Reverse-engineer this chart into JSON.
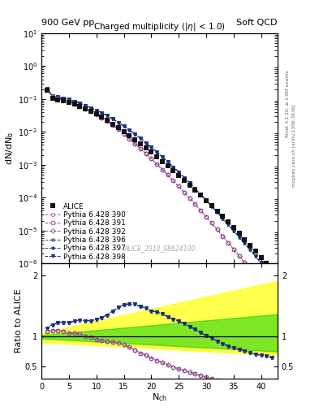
{
  "title_left": "900 GeV pp",
  "title_right": "Soft QCD",
  "right_label_top": "Rivet 3.1.10; ≥ 2.8M events",
  "right_label_bot": "mcplots.cern.ch [arXiv:1306.3436]",
  "main_title": "Charged multiplicity (|η| < 1.0)",
  "watermark": "ALICE_2010_S8624100",
  "xlim": [
    0,
    43
  ],
  "ylim_main": [
    1e-06,
    10
  ],
  "ylim_ratio": [
    0.3,
    2.2
  ],
  "alice_x": [
    1,
    2,
    3,
    4,
    5,
    6,
    7,
    8,
    9,
    10,
    11,
    12,
    13,
    14,
    15,
    16,
    17,
    18,
    19,
    20,
    21,
    22,
    23,
    24,
    25,
    26,
    27,
    28,
    29,
    30,
    31,
    32,
    33,
    34,
    35,
    36,
    37,
    38,
    39,
    40,
    41,
    42
  ],
  "alice_y": [
    0.185,
    0.105,
    0.095,
    0.087,
    0.079,
    0.069,
    0.059,
    0.051,
    0.043,
    0.036,
    0.029,
    0.023,
    0.0175,
    0.0133,
    0.01,
    0.0076,
    0.0057,
    0.0043,
    0.0032,
    0.0024,
    0.00175,
    0.00128,
    0.00093,
    0.00067,
    0.00048,
    0.00034,
    0.00024,
    0.000168,
    0.000118,
    8.25e-05,
    5.7e-05,
    3.92e-05,
    2.68e-05,
    1.83e-05,
    1.23e-05,
    8.2e-06,
    5.4e-06,
    3.6e-06,
    2.35e-06,
    1.54e-06,
    1e-06,
    6.5e-07
  ],
  "p390_x": [
    1,
    2,
    3,
    4,
    5,
    6,
    7,
    8,
    9,
    10,
    11,
    12,
    13,
    14,
    15,
    16,
    17,
    18,
    19,
    20,
    21,
    22,
    23,
    24,
    25,
    26,
    27,
    28,
    29,
    30,
    31,
    32,
    33,
    34,
    35,
    36,
    37,
    38,
    39,
    40,
    41,
    42
  ],
  "p390_y": [
    0.2,
    0.115,
    0.104,
    0.094,
    0.083,
    0.072,
    0.061,
    0.051,
    0.042,
    0.034,
    0.027,
    0.021,
    0.0158,
    0.0118,
    0.0086,
    0.0062,
    0.0044,
    0.0031,
    0.0022,
    0.00153,
    0.00105,
    0.00072,
    0.00049,
    0.00033,
    0.00022,
    0.000147,
    9.7e-05,
    6.3e-05,
    4.1e-05,
    2.65e-05,
    1.7e-05,
    1.08e-05,
    6.8e-06,
    4.3e-06,
    2.7e-06,
    1.7e-06,
    1.05e-06,
    6.5e-07,
    4e-07,
    2.5e-07,
    1.5e-07,
    9.2e-08
  ],
  "p391_x": [
    1,
    2,
    3,
    4,
    5,
    6,
    7,
    8,
    9,
    10,
    11,
    12,
    13,
    14,
    15,
    16,
    17,
    18,
    19,
    20,
    21,
    22,
    23,
    24,
    25,
    26,
    27,
    28,
    29,
    30,
    31,
    32,
    33,
    34,
    35,
    36,
    37,
    38,
    39,
    40,
    41,
    42
  ],
  "p391_y": [
    0.2,
    0.115,
    0.104,
    0.094,
    0.083,
    0.072,
    0.061,
    0.051,
    0.042,
    0.034,
    0.027,
    0.021,
    0.0158,
    0.0118,
    0.0086,
    0.0062,
    0.0044,
    0.0031,
    0.0022,
    0.00153,
    0.00105,
    0.00072,
    0.00049,
    0.00033,
    0.00022,
    0.000147,
    9.7e-05,
    6.3e-05,
    4.1e-05,
    2.65e-05,
    1.7e-05,
    1.08e-05,
    6.8e-06,
    4.3e-06,
    2.7e-06,
    1.7e-06,
    1.05e-06,
    6.5e-07,
    4e-07,
    2.5e-07,
    1.5e-07,
    9.2e-08
  ],
  "p392_x": [
    1,
    2,
    3,
    4,
    5,
    6,
    7,
    8,
    9,
    10,
    11,
    12,
    13,
    14,
    15,
    16,
    17,
    18,
    19,
    20,
    21,
    22,
    23,
    24,
    25,
    26,
    27,
    28,
    29,
    30,
    31,
    32,
    33,
    34,
    35,
    36,
    37,
    38,
    39,
    40,
    41,
    42
  ],
  "p392_y": [
    0.2,
    0.115,
    0.104,
    0.094,
    0.083,
    0.072,
    0.061,
    0.051,
    0.042,
    0.034,
    0.027,
    0.021,
    0.0158,
    0.0118,
    0.0086,
    0.0062,
    0.0044,
    0.0031,
    0.0022,
    0.00153,
    0.00105,
    0.00072,
    0.00049,
    0.00033,
    0.00022,
    0.000147,
    9.7e-05,
    6.3e-05,
    4.1e-05,
    2.65e-05,
    1.7e-05,
    1.08e-05,
    6.8e-06,
    4.3e-06,
    2.7e-06,
    1.7e-06,
    1.05e-06,
    6.5e-07,
    4e-07,
    2.5e-07,
    1.5e-07,
    9.2e-08
  ],
  "p396_x": [
    1,
    2,
    3,
    4,
    5,
    6,
    7,
    8,
    9,
    10,
    11,
    12,
    13,
    14,
    15,
    16,
    17,
    18,
    19,
    20,
    21,
    22,
    23,
    24,
    25,
    26,
    27,
    28,
    29,
    30,
    31,
    32,
    33,
    34,
    35,
    36,
    37,
    38,
    39,
    40,
    41,
    42
  ],
  "p396_y": [
    0.21,
    0.125,
    0.116,
    0.107,
    0.097,
    0.086,
    0.075,
    0.064,
    0.054,
    0.046,
    0.038,
    0.031,
    0.0248,
    0.0196,
    0.0152,
    0.0116,
    0.0087,
    0.0064,
    0.0047,
    0.0034,
    0.00245,
    0.00175,
    0.00123,
    0.00086,
    0.0006,
    0.00041,
    0.000278,
    0.000187,
    0.000125,
    8.32e-05,
    5.5e-05,
    3.61e-05,
    2.35e-05,
    1.53e-05,
    9.9e-06,
    6.4e-06,
    4.1e-06,
    2.6e-06,
    1.65e-06,
    1.05e-06,
    6.7e-07,
    4.2e-07
  ],
  "p397_x": [
    1,
    2,
    3,
    4,
    5,
    6,
    7,
    8,
    9,
    10,
    11,
    12,
    13,
    14,
    15,
    16,
    17,
    18,
    19,
    20,
    21,
    22,
    23,
    24,
    25,
    26,
    27,
    28,
    29,
    30,
    31,
    32,
    33,
    34,
    35,
    36,
    37,
    38,
    39,
    40,
    41,
    42
  ],
  "p397_y": [
    0.21,
    0.125,
    0.116,
    0.107,
    0.097,
    0.086,
    0.075,
    0.064,
    0.054,
    0.046,
    0.038,
    0.031,
    0.0248,
    0.0196,
    0.0152,
    0.0116,
    0.0087,
    0.0064,
    0.0047,
    0.0034,
    0.00245,
    0.00175,
    0.00123,
    0.00086,
    0.0006,
    0.00041,
    0.000278,
    0.000187,
    0.000125,
    8.32e-05,
    5.5e-05,
    3.61e-05,
    2.35e-05,
    1.53e-05,
    9.9e-06,
    6.4e-06,
    4.1e-06,
    2.6e-06,
    1.65e-06,
    1.05e-06,
    6.7e-07,
    4.2e-07
  ],
  "p398_x": [
    1,
    2,
    3,
    4,
    5,
    6,
    7,
    8,
    9,
    10,
    11,
    12,
    13,
    14,
    15,
    16,
    17,
    18,
    19,
    20,
    21,
    22,
    23,
    24,
    25,
    26,
    27,
    28,
    29,
    30,
    31,
    32,
    33,
    34,
    35,
    36,
    37,
    38,
    39,
    40,
    41,
    42
  ],
  "p398_y": [
    0.21,
    0.125,
    0.116,
    0.107,
    0.097,
    0.086,
    0.075,
    0.064,
    0.054,
    0.046,
    0.038,
    0.031,
    0.0248,
    0.0196,
    0.0152,
    0.0116,
    0.0087,
    0.0064,
    0.0047,
    0.0034,
    0.00245,
    0.00175,
    0.00123,
    0.00086,
    0.0006,
    0.00041,
    0.000278,
    0.000187,
    0.000125,
    8.32e-05,
    5.5e-05,
    3.61e-05,
    2.35e-05,
    1.53e-05,
    9.9e-06,
    6.4e-06,
    4.1e-06,
    2.6e-06,
    1.65e-06,
    1.05e-06,
    6.7e-07,
    4.2e-07
  ],
  "color_alice": "#111111",
  "color_390": "#c06878",
  "color_391": "#b05868",
  "color_392": "#9050a8",
  "color_396": "#304898",
  "color_397": "#253c88",
  "color_398": "#1a3078",
  "legend_fontsize": 6.5,
  "tick_labelsize": 7,
  "axis_labelsize": 8
}
